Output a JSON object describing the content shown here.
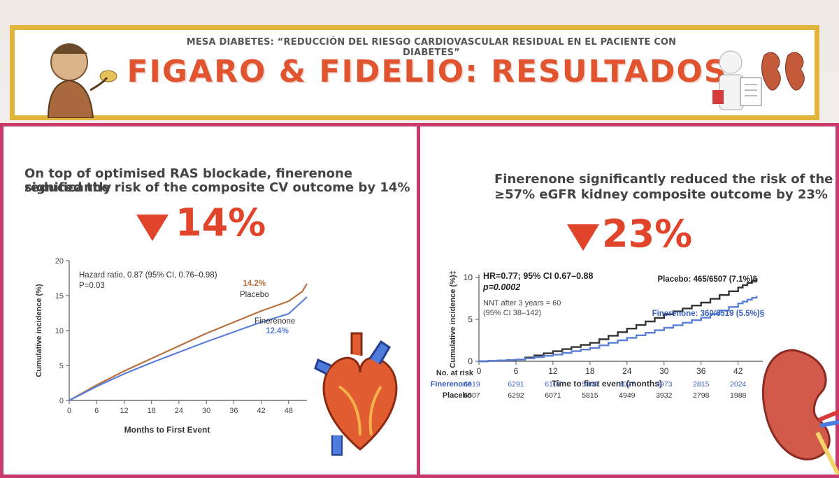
{
  "header": {
    "subtitle": "MESA DIABETES: “REDUCCIÓN DEL RIESGO CARDIOVASCULAR RESIDUAL EN EL PACIENTE CON DIABETES”",
    "title": "FIGARO & FIDELIO: RESULTADOS"
  },
  "left": {
    "headline_1": "On top of optimised RAS blockade, finerenone significantly",
    "headline_2": "reduced the risk of the composite CV outcome by 14%",
    "big_value": "14%"
  },
  "right": {
    "headline_1": "Finerenone significantly reduced the risk of the",
    "headline_2": "≥57% eGFR kidney composite outcome by 23%",
    "big_value": "23%"
  },
  "colors": {
    "accent": "#e0442a",
    "frame": "#c73a6b",
    "header_border": "#e2b43b",
    "placebo_left": "#b9703f",
    "finerenone": "#5b7fd8",
    "placebo_right": "#333333"
  },
  "chart_data": [
    {
      "type": "line",
      "xlabel": "Months to First Event",
      "ylabel": "Cumulative incidence (%)",
      "xlim": [
        0,
        52
      ],
      "ylim": [
        0,
        20
      ],
      "xticks": [
        0,
        6,
        12,
        18,
        24,
        30,
        36,
        42,
        48
      ],
      "yticks": [
        0,
        5,
        10,
        15,
        20
      ],
      "annotations": [
        "Hazard ratio, 0.87 (95% CI, 0.76–0.98)",
        "P=0.03"
      ],
      "series": [
        {
          "name": "Placebo",
          "end_label": "14.2%",
          "color": "#b9703f",
          "x": [
            0,
            6,
            12,
            18,
            24,
            30,
            36,
            42,
            48,
            51,
            52
          ],
          "y": [
            0,
            2.2,
            4.2,
            6.0,
            7.8,
            9.6,
            11.2,
            12.8,
            14.2,
            15.6,
            16.7
          ]
        },
        {
          "name": "Finerenone",
          "end_label": "12.4%",
          "color": "#5b7fd8",
          "x": [
            0,
            6,
            12,
            18,
            24,
            30,
            36,
            42,
            48,
            52
          ],
          "y": [
            0,
            2.0,
            3.8,
            5.4,
            6.9,
            8.4,
            9.8,
            11.2,
            12.4,
            14.8
          ]
        }
      ]
    },
    {
      "type": "line",
      "xlabel": "Time to first event (months)",
      "ylabel": "Cumulative incidence (%)‡",
      "xlim": [
        0,
        46
      ],
      "ylim": [
        0,
        10
      ],
      "xticks": [
        0,
        6,
        12,
        18,
        24,
        30,
        36,
        42
      ],
      "yticks": [
        0,
        5,
        10
      ],
      "annotations": [
        "HR=0.77; 95% CI 0.67–0.88",
        "p=0.0002",
        "NNT after 3 years = 60",
        "(95% CI 38–142)"
      ],
      "series": [
        {
          "name": "Placebo: 465/6507 (7.1%)§",
          "color": "#333333",
          "x": [
            0,
            6,
            12,
            18,
            24,
            30,
            36,
            42,
            45
          ],
          "y": [
            0,
            0.2,
            1.2,
            2.2,
            3.9,
            5.6,
            7.0,
            8.8,
            9.9
          ]
        },
        {
          "name": "Finerenone: 360/6519 (5.5%)§",
          "color": "#5b7fd8",
          "x": [
            0,
            6,
            12,
            18,
            24,
            30,
            36,
            42,
            45
          ],
          "y": [
            0,
            0.2,
            0.8,
            1.6,
            2.8,
            4.0,
            5.2,
            6.9,
            7.8
          ]
        }
      ],
      "risk_table": {
        "title": "No. at risk",
        "rows": [
          {
            "label": "Finerenone",
            "values": [
              6519,
              6291,
              6107,
              5848,
              5027,
              3973,
              2815,
              2024
            ]
          },
          {
            "label": "Placebo",
            "values": [
              6507,
              6292,
              6071,
              5815,
              4949,
              3932,
              2798,
              1988
            ]
          }
        ]
      }
    }
  ]
}
